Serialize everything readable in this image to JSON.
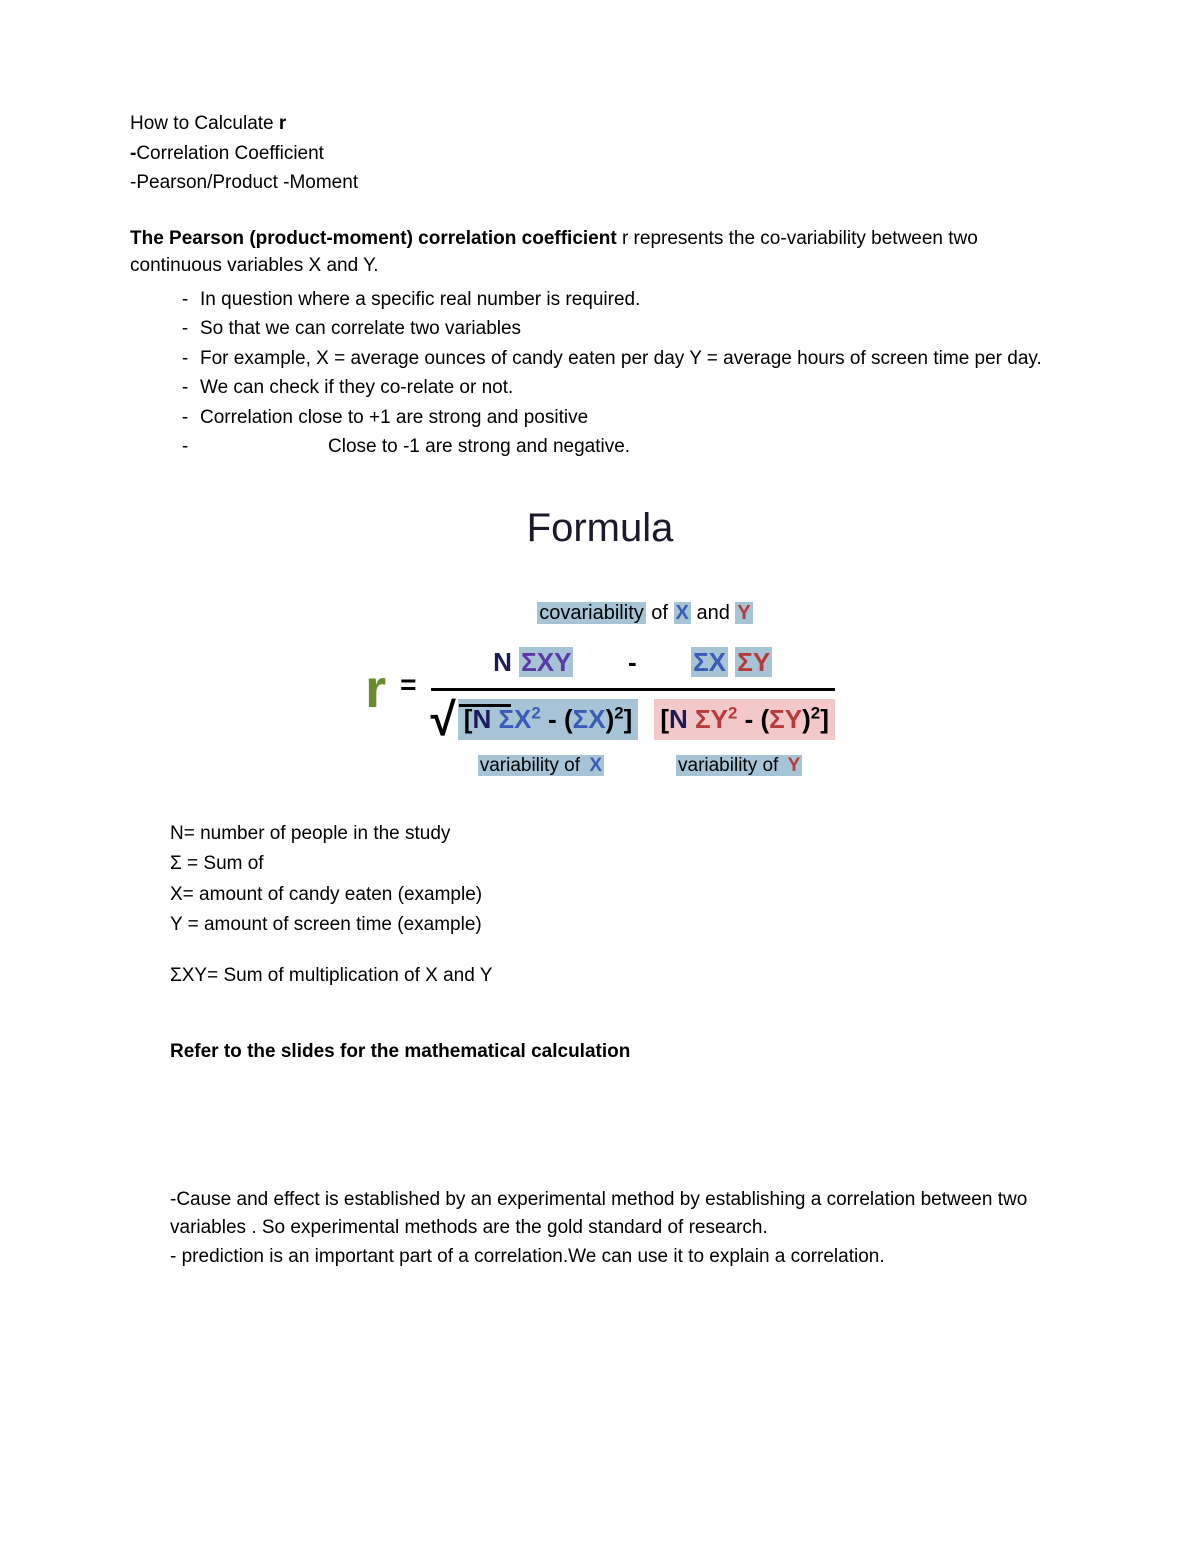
{
  "header": {
    "line1_pre": "How to Calculate ",
    "line1_bold": "r",
    "line2_dash": "-",
    "line2": "Correlation Coefficient",
    "line3": "-Pearson/Product -Moment"
  },
  "intro": {
    "bold": "The Pearson (product-moment) correlation coefficient ",
    "rest": "r represents the co-variability between two continuous variables X and Y."
  },
  "bullets": [
    "In question where a  specific real number is required.",
    "So that we can correlate two variables",
    " For example, X = average ounces of candy eaten per day Y = average hours of screen time per day.",
    "We can check if they co-relate or not.",
    "Correlation close to +1 are strong and positive",
    "Close to -1 are strong and negative."
  ],
  "formula": {
    "title": "Formula",
    "covar_label_pre": "covariability",
    "covar_of": " of ",
    "covar_and": " and ",
    "x": "X",
    "y": "Y",
    "r": "r",
    "eq": "=",
    "N": "N",
    "sigma": "Σ",
    "sigmaXY": "ΣXY",
    "sigmaX": "ΣX",
    "sigmaY": "ΣY",
    "minus": "-",
    "lbr": "[",
    "rbr": "]",
    "sq": "2",
    "sqrt": "√",
    "var_of": "variability of ",
    "colors": {
      "r": "#6a8a2e",
      "n": "#1a1a5a",
      "combined": "#5a3aa8",
      "x": "#3a5cb8",
      "y": "#b83a3a",
      "hl_x": "#a7c4d6",
      "hl_y": "#f2c8c8"
    }
  },
  "defs": {
    "n": "N= number of people in the study",
    "sigma": "Σ = Sum of",
    "x": "X= amount of candy eaten (example)",
    "y": "Y = amount of screen time (example)",
    "sxy": "ΣXY= Sum of multiplication of X and Y"
  },
  "refer": "Refer to the slides for the mathematical calculation",
  "closing": {
    "p1": "-Cause and effect is established by an experimental method by establishing a correlation between two variables . So experimental methods are the gold standard of research.",
    "p2": "- prediction is an important part of a correlation.We can use it to explain a correlation."
  }
}
